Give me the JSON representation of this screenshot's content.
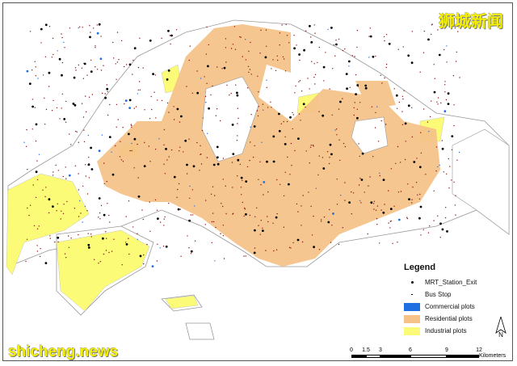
{
  "watermark_top": "狮城新闻",
  "watermark_bottom": "shicheng.news",
  "legend": {
    "title": "Legend",
    "items": [
      {
        "label": "MRT_Station_Exit",
        "symbol": "large-dot"
      },
      {
        "label": "Bus Stop",
        "symbol": "small-dot"
      },
      {
        "label": "Commercial plots",
        "color": "#1f6fe0"
      },
      {
        "label": "Residential plots",
        "color": "#f5c38a"
      },
      {
        "label": "Industrial plots",
        "color": "#fbfb78"
      }
    ]
  },
  "north_arrow": {
    "label": "N"
  },
  "scale_bar": {
    "ticks": [
      "0",
      "1.5",
      "3",
      "6",
      "9",
      "12"
    ],
    "unit": "Kilometers"
  }
}
